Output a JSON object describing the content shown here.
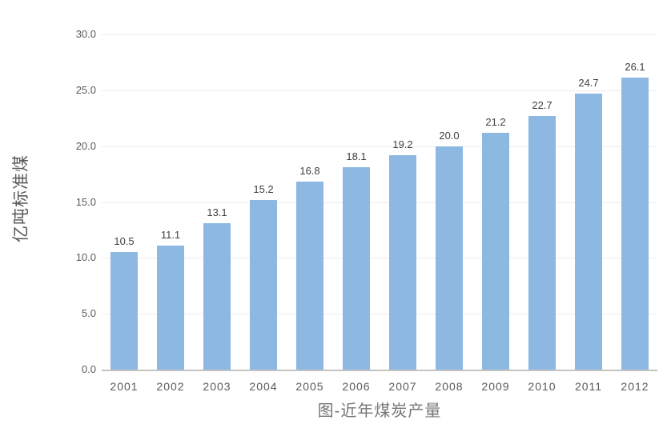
{
  "chart_data": {
    "type": "bar",
    "title": "图-近年煤炭产量",
    "xlabel": "",
    "ylabel": "亿吨标准煤",
    "categories": [
      "2001",
      "2002",
      "2003",
      "2004",
      "2005",
      "2006",
      "2007",
      "2008",
      "2009",
      "2010",
      "2011",
      "2012"
    ],
    "values": [
      10.5,
      11.1,
      13.1,
      15.2,
      16.8,
      18.1,
      19.2,
      20.0,
      21.2,
      22.7,
      24.7,
      26.1
    ],
    "value_labels": [
      "10.5",
      "11.1",
      "13.1",
      "15.2",
      "16.8",
      "18.1",
      "19.2",
      "20.0",
      "21.2",
      "22.7",
      "24.7",
      "26.1"
    ],
    "ylim": [
      0,
      30
    ],
    "ytick_step": 5,
    "ytick_labels": [
      "0.0",
      "5.0",
      "10.0",
      "15.0",
      "20.0",
      "25.0",
      "30.0"
    ],
    "grid": true,
    "legend": "none",
    "colors": {
      "bar": "#8db8e2",
      "value_label": "#404040",
      "axis_text": "#595959",
      "title_text": "#757575",
      "gridline": "#ebebeb",
      "axis_line": "#c3c3c3"
    }
  }
}
